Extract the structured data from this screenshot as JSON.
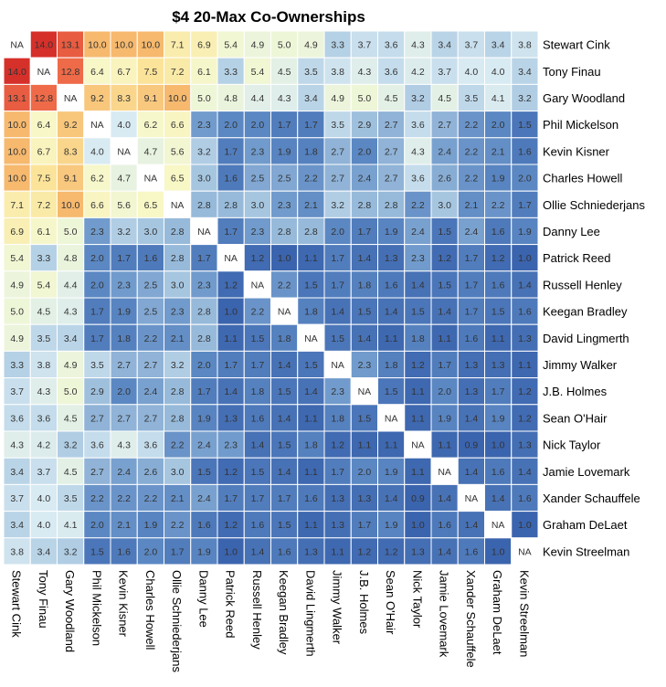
{
  "chart_data": {
    "type": "heatmap",
    "title": "$4 20-Max Co-Ownerships",
    "na_label": "NA",
    "players": [
      "Stewart Cink",
      "Tony Finau",
      "Gary Woodland",
      "Phil Mickelson",
      "Kevin Kisner",
      "Charles Howell",
      "Ollie Schniederjans",
      "Danny Lee",
      "Patrick Reed",
      "Russell Henley",
      "Keegan Bradley",
      "David Lingmerth",
      "Jimmy Walker",
      "J.B. Holmes",
      "Sean O'Hair",
      "Nick Taylor",
      "Jamie Lovemark",
      "Xander Schauffele",
      "Graham DeLaet",
      "Kevin Streelman"
    ],
    "values": [
      [
        null,
        14.0,
        13.1,
        10.0,
        10.0,
        10.0,
        7.1,
        6.9,
        5.4,
        4.9,
        5.0,
        4.9,
        3.3,
        3.7,
        3.6,
        4.3,
        3.4,
        3.7,
        3.4,
        3.8
      ],
      [
        14.0,
        null,
        12.8,
        6.4,
        6.7,
        7.5,
        7.2,
        6.1,
        3.3,
        5.4,
        4.5,
        3.5,
        3.8,
        4.3,
        3.6,
        4.2,
        3.7,
        4.0,
        4.0,
        3.4
      ],
      [
        13.1,
        12.8,
        null,
        9.2,
        8.3,
        9.1,
        10.0,
        5.0,
        4.8,
        4.4,
        4.3,
        3.4,
        4.9,
        5.0,
        4.5,
        3.2,
        4.5,
        3.5,
        4.1,
        3.2
      ],
      [
        10.0,
        6.4,
        9.2,
        null,
        4.0,
        6.2,
        6.6,
        2.3,
        2.0,
        2.0,
        1.7,
        1.7,
        3.5,
        2.9,
        2.7,
        3.6,
        2.7,
        2.2,
        2.0,
        1.5
      ],
      [
        10.0,
        6.7,
        8.3,
        4.0,
        null,
        4.7,
        5.6,
        3.2,
        1.7,
        2.3,
        1.9,
        1.8,
        2.7,
        2.0,
        2.7,
        4.3,
        2.4,
        2.2,
        2.1,
        1.6
      ],
      [
        10.0,
        7.5,
        9.1,
        6.2,
        4.7,
        null,
        6.5,
        3.0,
        1.6,
        2.5,
        2.5,
        2.2,
        2.7,
        2.4,
        2.7,
        3.6,
        2.6,
        2.2,
        1.9,
        2.0
      ],
      [
        7.1,
        7.2,
        10.0,
        6.6,
        5.6,
        6.5,
        null,
        2.8,
        2.8,
        3.0,
        2.3,
        2.1,
        3.2,
        2.8,
        2.8,
        2.2,
        3.0,
        2.1,
        2.2,
        1.7
      ],
      [
        6.9,
        6.1,
        5.0,
        2.3,
        3.2,
        3.0,
        2.8,
        null,
        1.7,
        2.3,
        2.8,
        2.8,
        2.0,
        1.7,
        1.9,
        2.4,
        1.5,
        2.4,
        1.6,
        1.9
      ],
      [
        5.4,
        3.3,
        4.8,
        2.0,
        1.7,
        1.6,
        2.8,
        1.7,
        null,
        1.2,
        1.0,
        1.1,
        1.7,
        1.4,
        1.3,
        2.3,
        1.2,
        1.7,
        1.2,
        1.0
      ],
      [
        4.9,
        5.4,
        4.4,
        2.0,
        2.3,
        2.5,
        3.0,
        2.3,
        1.2,
        null,
        2.2,
        1.5,
        1.7,
        1.8,
        1.6,
        1.4,
        1.5,
        1.7,
        1.6,
        1.4
      ],
      [
        5.0,
        4.5,
        4.3,
        1.7,
        1.9,
        2.5,
        2.3,
        2.8,
        1.0,
        2.2,
        null,
        1.8,
        1.4,
        1.5,
        1.4,
        1.5,
        1.4,
        1.7,
        1.5,
        1.6
      ],
      [
        4.9,
        3.5,
        3.4,
        1.7,
        1.8,
        2.2,
        2.1,
        2.8,
        1.1,
        1.5,
        1.8,
        null,
        1.5,
        1.4,
        1.1,
        1.8,
        1.1,
        1.6,
        1.1,
        1.3
      ],
      [
        3.3,
        3.8,
        4.9,
        3.5,
        2.7,
        2.7,
        3.2,
        2.0,
        1.7,
        1.7,
        1.4,
        1.5,
        null,
        2.3,
        1.8,
        1.2,
        1.7,
        1.3,
        1.3,
        1.1
      ],
      [
        3.7,
        4.3,
        5.0,
        2.9,
        2.0,
        2.4,
        2.8,
        1.7,
        1.4,
        1.8,
        1.5,
        1.4,
        2.3,
        null,
        1.5,
        1.1,
        2.0,
        1.3,
        1.7,
        1.2
      ],
      [
        3.6,
        3.6,
        4.5,
        2.7,
        2.7,
        2.7,
        2.8,
        1.9,
        1.3,
        1.6,
        1.4,
        1.1,
        1.8,
        1.5,
        null,
        1.1,
        1.9,
        1.4,
        1.9,
        1.2
      ],
      [
        4.3,
        4.2,
        3.2,
        3.6,
        4.3,
        3.6,
        2.2,
        2.4,
        2.3,
        1.4,
        1.5,
        1.8,
        1.2,
        1.1,
        1.1,
        null,
        1.1,
        0.9,
        1.0,
        1.3
      ],
      [
        3.4,
        3.7,
        4.5,
        2.7,
        2.4,
        2.6,
        3.0,
        1.5,
        1.2,
        1.5,
        1.4,
        1.1,
        1.7,
        2.0,
        1.9,
        1.1,
        null,
        1.4,
        1.6,
        1.4
      ],
      [
        3.7,
        4.0,
        3.5,
        2.2,
        2.2,
        2.2,
        2.1,
        2.4,
        1.7,
        1.7,
        1.7,
        1.6,
        1.3,
        1.3,
        1.4,
        0.9,
        1.4,
        null,
        1.4,
        1.6
      ],
      [
        3.4,
        4.0,
        4.1,
        2.0,
        2.1,
        1.9,
        2.2,
        1.6,
        1.2,
        1.6,
        1.5,
        1.1,
        1.3,
        1.7,
        1.9,
        1.0,
        1.6,
        1.4,
        null,
        1.0
      ],
      [
        3.8,
        3.4,
        3.2,
        1.5,
        1.6,
        2.0,
        1.7,
        1.9,
        1.0,
        1.4,
        1.6,
        1.3,
        1.1,
        1.2,
        1.2,
        1.3,
        1.4,
        1.6,
        1.0,
        null
      ]
    ],
    "color_scale": {
      "stops": [
        {
          "value": 1.0,
          "color": "#3b64ae"
        },
        {
          "value": 2.0,
          "color": "#5b88c3"
        },
        {
          "value": 3.0,
          "color": "#a6c6e0"
        },
        {
          "value": 4.0,
          "color": "#d8eaf2"
        },
        {
          "value": 5.0,
          "color": "#eef6d8"
        },
        {
          "value": 6.5,
          "color": "#f8f7c6"
        },
        {
          "value": 7.5,
          "color": "#fbe49a"
        },
        {
          "value": 10.0,
          "color": "#f6b96e"
        },
        {
          "value": 12.8,
          "color": "#ee6a48"
        },
        {
          "value": 14.0,
          "color": "#d6302a"
        }
      ],
      "na_color": "#ffffff",
      "grid_color": "#ffffff"
    }
  }
}
